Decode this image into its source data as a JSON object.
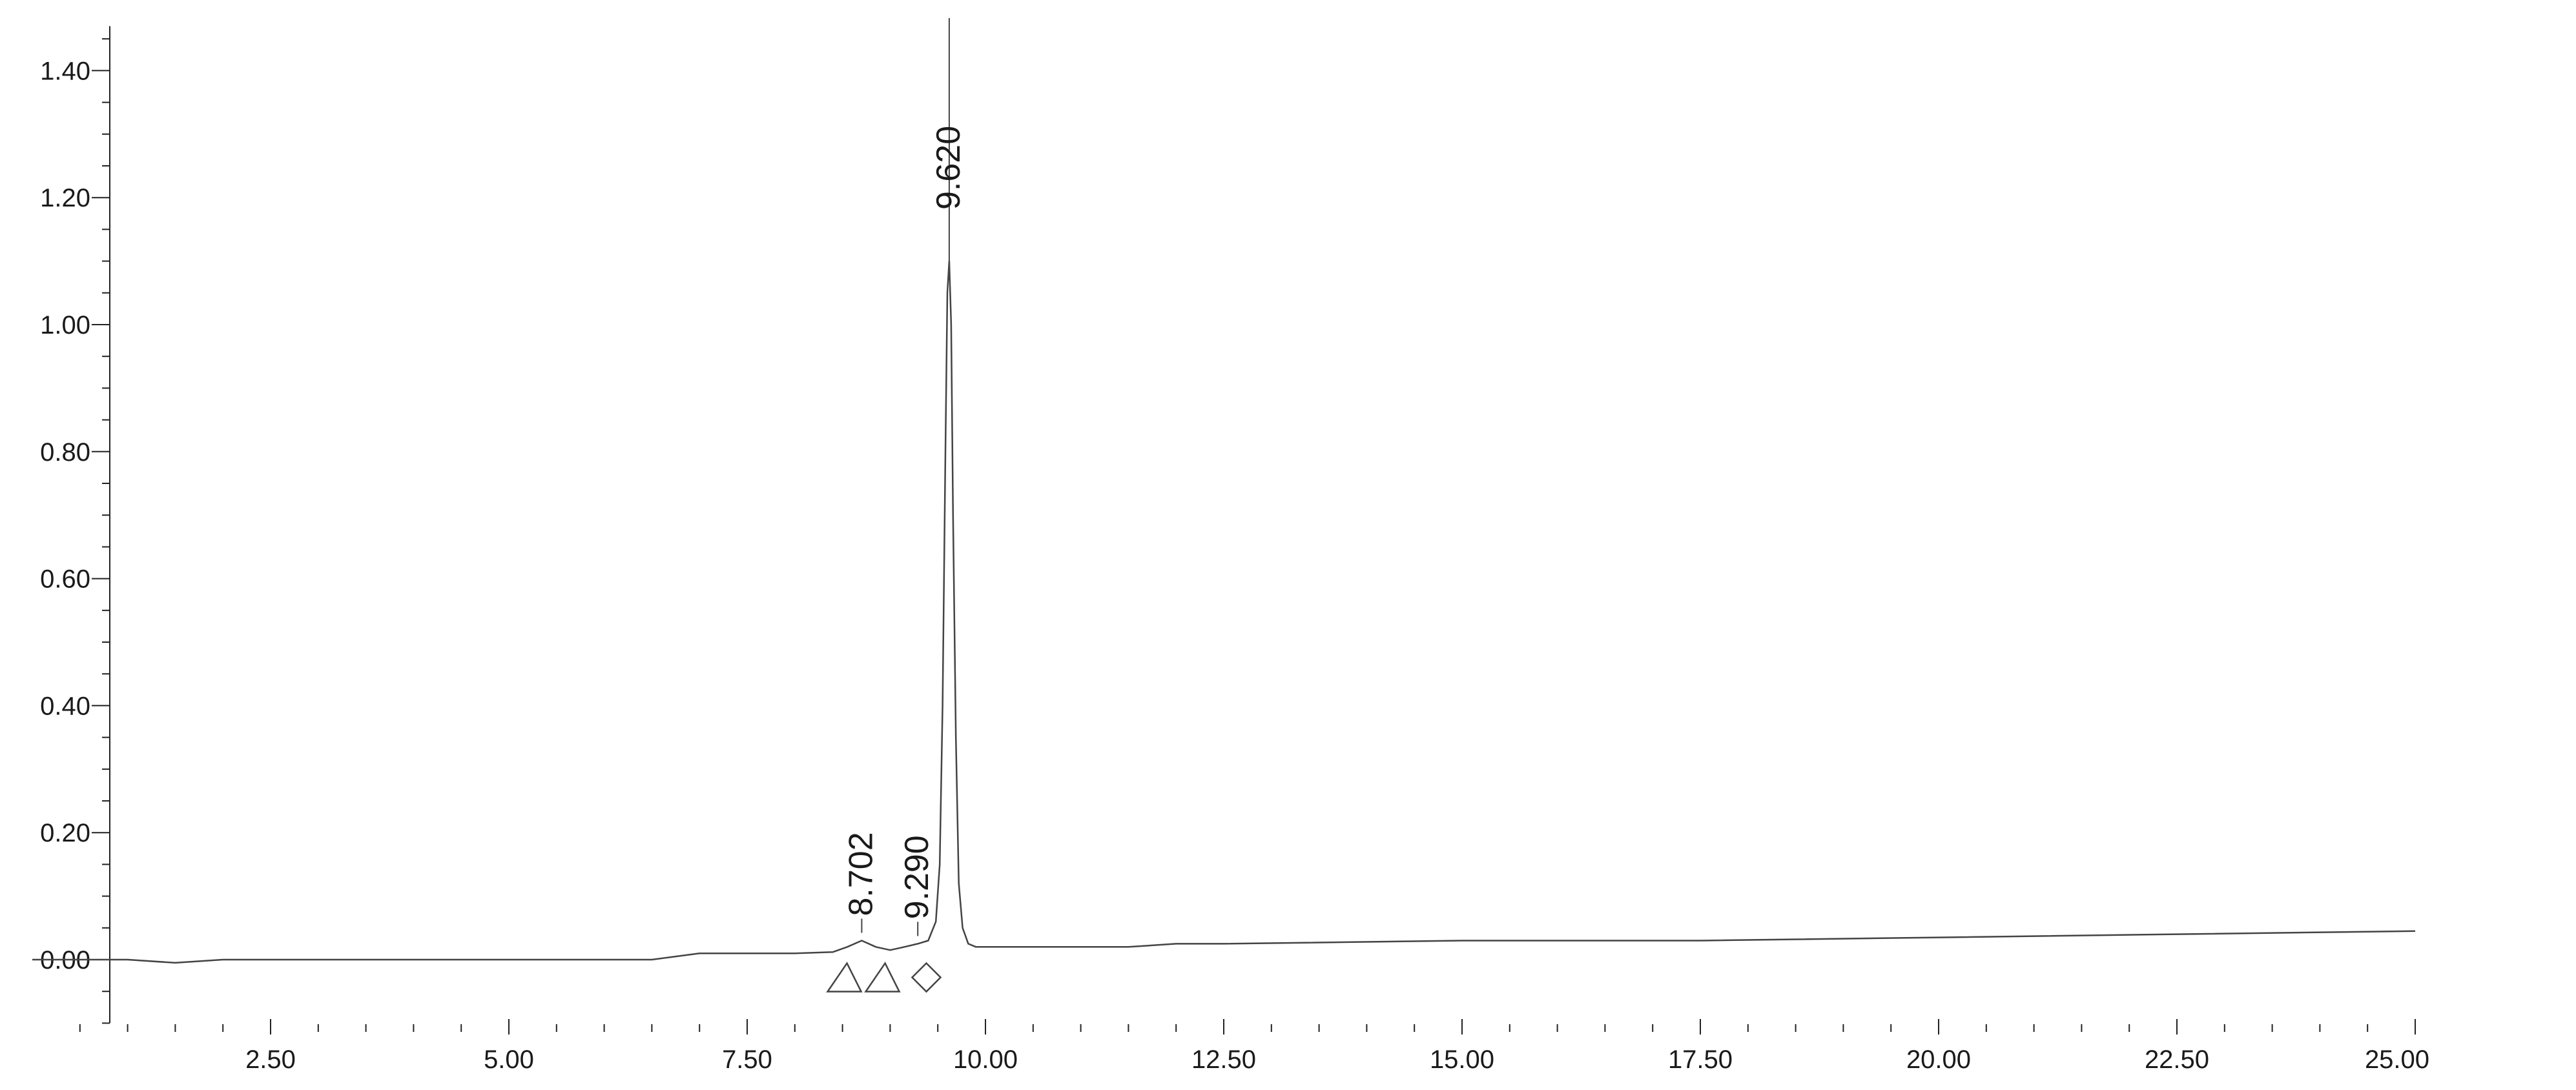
{
  "colors": {
    "background": "#ffffff",
    "axis": "#222222",
    "trace": "#444444",
    "text": "#1a1a1a"
  },
  "chart_data": {
    "type": "line",
    "title": "",
    "xlabel": "",
    "ylabel": "",
    "xlim": [
      0.0,
      25.0
    ],
    "ylim": [
      -0.1,
      1.47
    ],
    "grid": false,
    "legend": "none",
    "x_ticks": {
      "major_values": [
        2.5,
        5.0,
        7.5,
        10.0,
        12.5,
        15.0,
        17.5,
        20.0,
        22.5,
        25.0
      ],
      "major_labels": [
        "2.50",
        "5.00",
        "7.50",
        "10.00",
        "12.50",
        "15.00",
        "17.50",
        "20.00",
        "22.50",
        "25.00"
      ],
      "minor_step": 0.5
    },
    "y_ticks": {
      "major_values": [
        0.0,
        0.2,
        0.4,
        0.6,
        0.8,
        1.0,
        1.2,
        1.4
      ],
      "major_labels": [
        "0.00",
        "0.20",
        "0.40",
        "0.60",
        "0.80",
        "1.00",
        "1.20",
        "1.40"
      ],
      "minor_step": 0.05
    },
    "series": [
      {
        "x": [
          0.0,
          0.5,
          1.0,
          1.5,
          2.0,
          2.5,
          3.0,
          3.5,
          4.0,
          5.0,
          6.0,
          6.5,
          7.0,
          7.5,
          8.0,
          8.4,
          8.55,
          8.702,
          8.85,
          9.0,
          9.15,
          9.29,
          9.4,
          9.48,
          9.52,
          9.55,
          9.58,
          9.6,
          9.62,
          9.64,
          9.66,
          9.69,
          9.72,
          9.76,
          9.82,
          9.9,
          10.0,
          10.5,
          11.0,
          11.5,
          12.0,
          12.5,
          15.0,
          17.5,
          20.0,
          22.5,
          25.0
        ],
        "y": [
          0.0,
          0.0,
          0.0,
          -0.005,
          0.0,
          0.0,
          0.0,
          0.0,
          0.0,
          0.0,
          0.0,
          0.0,
          0.01,
          0.01,
          0.01,
          0.012,
          0.02,
          0.03,
          0.02,
          0.015,
          0.02,
          0.025,
          0.03,
          0.06,
          0.15,
          0.4,
          0.8,
          1.05,
          1.1,
          1.0,
          0.7,
          0.35,
          0.12,
          0.05,
          0.025,
          0.02,
          0.02,
          0.02,
          0.02,
          0.02,
          0.025,
          0.025,
          0.03,
          0.03,
          0.035,
          0.04,
          0.045
        ],
        "peaks": [
          {
            "x": 8.702,
            "label": "8.702",
            "y": 0.03
          },
          {
            "x": 9.29,
            "label": "9.290",
            "y": 0.025
          },
          {
            "x": 9.62,
            "label": "9.620",
            "y": 1.1
          }
        ]
      }
    ],
    "integration_markers": [
      {
        "x": 8.52,
        "shape": "triangle"
      },
      {
        "x": 8.92,
        "shape": "triangle"
      },
      {
        "x": 9.38,
        "shape": "diamond"
      }
    ]
  }
}
